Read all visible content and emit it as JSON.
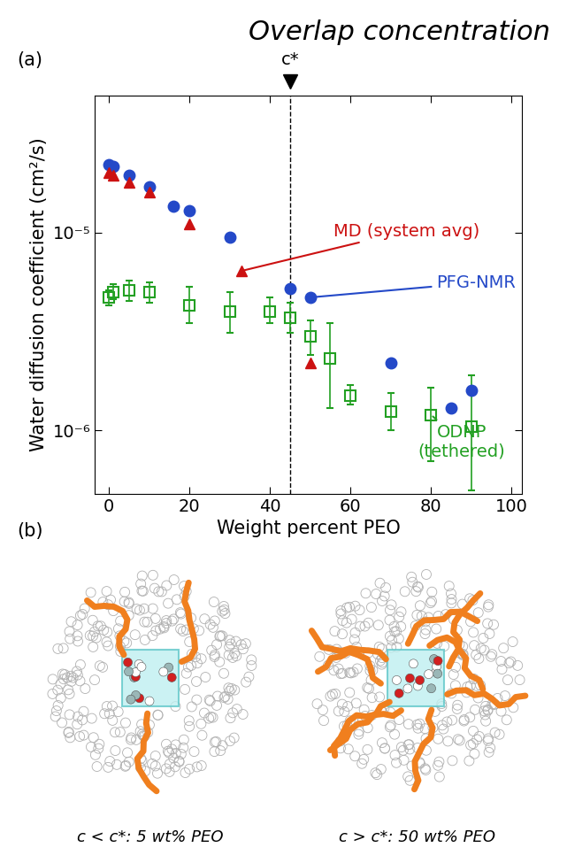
{
  "chart_data": {
    "type": "scatter",
    "panel_label": "(a)",
    "title": "Overlap concentration",
    "x_label": "Weight percent PEO",
    "y_label": "Water diffusion coefficient (cm²/s)",
    "log": "y",
    "grid": false,
    "xlim": [
      -3.5,
      102.5
    ],
    "xticks": [
      0,
      20,
      40,
      60,
      80,
      100
    ],
    "ylim": [
      4.8e-07,
      4.9e-05
    ],
    "yticks": [
      {
        "value": 1e-06,
        "label": "10⁻⁶"
      },
      {
        "value": 1e-05,
        "label": "10⁻⁵"
      }
    ],
    "overlap": {
      "x": 45,
      "label": "c*"
    },
    "series": [
      {
        "name": "PFG-NMR",
        "color": "#2449c8",
        "marker": "o",
        "x": [
          0,
          1,
          5,
          10,
          16,
          20,
          30,
          45,
          50,
          70,
          85,
          90
        ],
        "values": [
          2.2e-05,
          2.15e-05,
          1.95e-05,
          1.71e-05,
          1.36e-05,
          1.29e-05,
          9.5e-06,
          5.2e-06,
          4.7e-06,
          2.2e-06,
          1.3e-06,
          1.6e-06
        ]
      },
      {
        "name": "MD (system avg)",
        "color": "#cc1111",
        "marker": "^",
        "x": [
          0,
          1,
          5,
          10,
          20,
          33,
          50
        ],
        "values": [
          2e-05,
          1.95e-05,
          1.8e-05,
          1.6e-05,
          1.1e-05,
          6.4e-06,
          2.2e-06
        ]
      },
      {
        "name": "ODNP\n(tethered)",
        "color": "#22a022",
        "marker": "s",
        "x": [
          0,
          1,
          5,
          10,
          20,
          30,
          40,
          45,
          50,
          55,
          60,
          70,
          80,
          90
        ],
        "values": [
          4.7e-06,
          5e-06,
          5.1e-06,
          5e-06,
          4.3e-06,
          4e-06,
          4e-06,
          3.7e-06,
          3e-06,
          2.3e-06,
          1.5e-06,
          1.25e-06,
          1.2e-06,
          1.05e-06
        ],
        "error_low": [
          4.3e-06,
          4.6e-06,
          4.5e-06,
          4.4e-06,
          3.5e-06,
          3.1e-06,
          3.5e-06,
          3.1e-06,
          2.4e-06,
          1.3e-06,
          1.35e-06,
          1e-06,
          7e-07,
          5e-07
        ],
        "error_high": [
          5.1e-06,
          5.5e-06,
          5.7e-06,
          5.6e-06,
          5.3e-06,
          5e-06,
          4.7e-06,
          4.4e-06,
          3.6e-06,
          3.5e-06,
          1.7e-06,
          1.55e-06,
          1.65e-06,
          1.9e-06
        ]
      }
    ]
  },
  "panel_b": {
    "panel_label": "(b)",
    "captions": [
      "c < c*: 5 wt% PEO",
      "c > c*: 50 wt% PEO"
    ]
  }
}
